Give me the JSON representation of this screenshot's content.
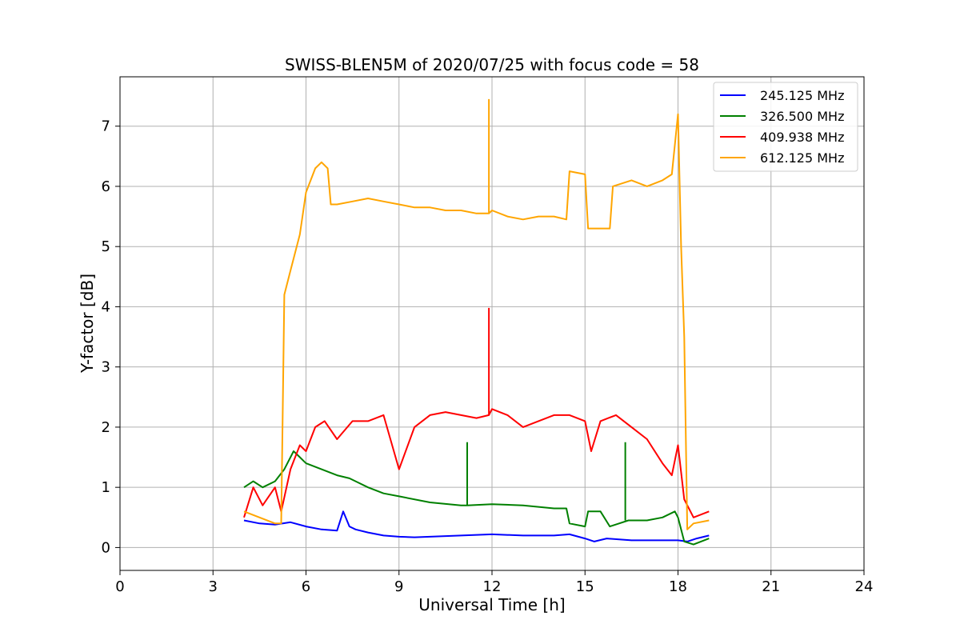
{
  "chart_data": {
    "type": "line",
    "title": "SWISS-BLEN5M of 2020/07/25 with focus code = 58",
    "xlabel": "Universal Time [h]",
    "ylabel": "Y-factor [dB]",
    "xlim": [
      0,
      24
    ],
    "ylim": [
      -0.38,
      7.82
    ],
    "xticks": [
      0,
      3,
      6,
      9,
      12,
      15,
      18,
      21,
      24
    ],
    "yticks": [
      0,
      1,
      2,
      3,
      4,
      5,
      6,
      7
    ],
    "grid": true,
    "legend_position": "top-right",
    "series": [
      {
        "name": "245.125 MHz",
        "color": "#0000ff",
        "x": [
          4.0,
          4.5,
          5.0,
          5.5,
          6.0,
          6.5,
          7.0,
          7.2,
          7.4,
          7.6,
          8.0,
          8.5,
          9.0,
          9.5,
          10.0,
          11.0,
          12.0,
          13.0,
          14.0,
          14.5,
          15.0,
          15.3,
          15.7,
          16.5,
          17.5,
          18.0,
          18.3,
          18.6,
          19.0
        ],
        "y": [
          0.45,
          0.4,
          0.38,
          0.42,
          0.35,
          0.3,
          0.28,
          0.6,
          0.35,
          0.3,
          0.25,
          0.2,
          0.18,
          0.17,
          0.18,
          0.2,
          0.22,
          0.2,
          0.2,
          0.22,
          0.15,
          0.1,
          0.15,
          0.12,
          0.12,
          0.12,
          0.1,
          0.15,
          0.2
        ]
      },
      {
        "name": "326.500 MHz",
        "color": "#008000",
        "x": [
          4.0,
          4.3,
          4.6,
          5.0,
          5.3,
          5.6,
          5.8,
          6.0,
          6.5,
          7.0,
          7.4,
          7.6,
          8.0,
          8.5,
          9.0,
          10.0,
          11.0,
          11.2,
          12.0,
          13.0,
          14.0,
          14.4,
          14.5,
          15.0,
          15.1,
          15.5,
          15.8,
          16.1,
          16.4,
          17.0,
          17.5,
          17.9,
          18.0,
          18.2,
          18.5,
          19.0
        ],
        "y": [
          1.0,
          1.1,
          1.0,
          1.1,
          1.3,
          1.6,
          1.5,
          1.4,
          1.3,
          1.2,
          1.15,
          1.1,
          1.0,
          0.9,
          0.85,
          0.75,
          0.7,
          0.7,
          0.72,
          0.7,
          0.65,
          0.65,
          0.4,
          0.35,
          0.6,
          0.6,
          0.35,
          0.4,
          0.45,
          0.45,
          0.5,
          0.6,
          0.5,
          0.1,
          0.05,
          0.15
        ]
      },
      {
        "name": "409.938 MHz",
        "color": "#ff0000",
        "x": [
          4.0,
          4.3,
          4.6,
          5.0,
          5.2,
          5.5,
          5.8,
          6.0,
          6.3,
          6.6,
          7.0,
          7.5,
          8.0,
          8.5,
          9.0,
          9.5,
          10.0,
          10.5,
          11.0,
          11.5,
          11.9,
          12.0,
          12.5,
          13.0,
          13.5,
          14.0,
          14.5,
          15.0,
          15.2,
          15.5,
          16.0,
          16.5,
          17.0,
          17.5,
          17.8,
          18.0,
          18.2,
          18.5,
          19.0
        ],
        "y": [
          0.5,
          1.0,
          0.7,
          1.0,
          0.6,
          1.3,
          1.7,
          1.6,
          2.0,
          2.1,
          1.8,
          2.1,
          2.1,
          2.2,
          1.3,
          2.0,
          2.2,
          2.25,
          2.2,
          2.15,
          2.2,
          2.3,
          2.2,
          2.0,
          2.1,
          2.2,
          2.2,
          2.1,
          1.6,
          2.1,
          2.2,
          2.0,
          1.8,
          1.4,
          1.2,
          1.7,
          0.8,
          0.5,
          0.6
        ]
      },
      {
        "name": "612.125 MHz",
        "color": "#ffa500",
        "x": [
          4.0,
          4.5,
          5.0,
          5.2,
          5.3,
          5.5,
          5.8,
          6.0,
          6.3,
          6.5,
          6.7,
          6.8,
          7.0,
          7.5,
          8.0,
          8.5,
          9.0,
          9.5,
          10.0,
          10.5,
          11.0,
          11.5,
          11.9,
          12.0,
          12.5,
          13.0,
          13.5,
          14.0,
          14.4,
          14.5,
          15.0,
          15.1,
          15.5,
          15.8,
          15.9,
          16.5,
          17.0,
          17.5,
          17.8,
          18.0,
          18.1,
          18.2,
          18.3,
          18.5,
          19.0
        ],
        "y": [
          0.6,
          0.5,
          0.4,
          0.4,
          4.2,
          4.6,
          5.2,
          5.9,
          6.3,
          6.4,
          6.3,
          5.7,
          5.7,
          5.75,
          5.8,
          5.75,
          5.7,
          5.65,
          5.65,
          5.6,
          5.6,
          5.55,
          5.55,
          5.6,
          5.5,
          5.45,
          5.5,
          5.5,
          5.45,
          6.25,
          6.2,
          5.3,
          5.3,
          5.3,
          6.0,
          6.1,
          6.0,
          6.1,
          6.2,
          7.2,
          5.0,
          3.5,
          0.3,
          0.4,
          0.45
        ]
      }
    ],
    "annotations": [
      {
        "series": "612.125 MHz",
        "x": 11.9,
        "y": 7.45
      },
      {
        "series": "409.938 MHz",
        "x": 11.9,
        "y": 3.98
      },
      {
        "series": "326.500 MHz",
        "x": 11.2,
        "y": 1.75
      },
      {
        "series": "326.500 MHz",
        "x": 16.3,
        "y": 1.75
      }
    ]
  }
}
